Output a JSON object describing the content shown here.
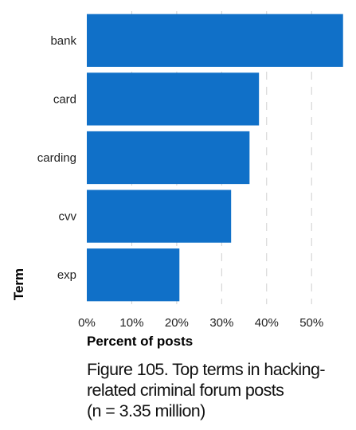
{
  "chart_data": {
    "type": "bar",
    "orientation": "horizontal",
    "categories": [
      "bank",
      "card",
      "carding",
      "cvv",
      "exp"
    ],
    "values": [
      57,
      38.3,
      36.2,
      32.1,
      20.6
    ],
    "xlabel": "Percent of posts",
    "ylabel": "Term",
    "xlim": [
      0,
      57.4
    ],
    "xticks": [
      0,
      10,
      20,
      30,
      40,
      50
    ],
    "xtick_labels": [
      "0%",
      "10%",
      "20%",
      "30%",
      "40%",
      "50%"
    ],
    "grid": "vertical dashed",
    "bar_color": "#1070c8"
  },
  "caption": "Figure 105. Top terms in hacking-\nrelated criminal forum posts\n(n = 3.35 million)"
}
